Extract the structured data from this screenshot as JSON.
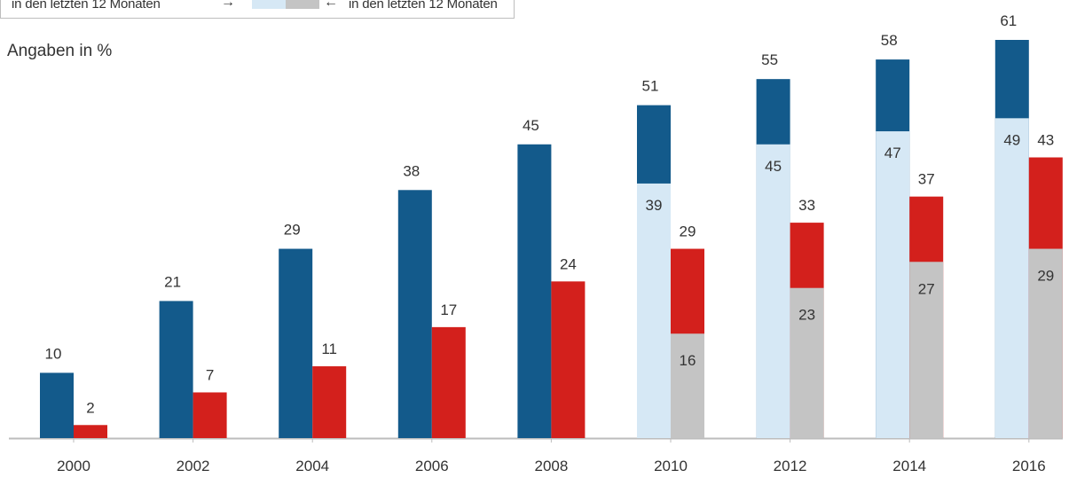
{
  "legend": {
    "left_text": "in den letzten 12 Monaten",
    "right_text": "in den letzten 12 Monaten",
    "left_arrow": "→",
    "right_arrow": "←",
    "swatch_colors": [
      "#d6e8f5",
      "#c4c4c4"
    ]
  },
  "unit_label": "Angaben in %",
  "colors": {
    "blue": "#135a8b",
    "light_blue": "#d6e8f5",
    "red": "#d3201c",
    "grey": "#c4c4c4",
    "axis": "#bdbdbd",
    "text": "#333333"
  },
  "chart_data": {
    "type": "bar",
    "categories": [
      "2000",
      "2002",
      "2004",
      "2006",
      "2008",
      "2010",
      "2012",
      "2014",
      "2016"
    ],
    "ylim": [
      0,
      70
    ],
    "grid": false,
    "series": [
      {
        "values": [
          10,
          21,
          29,
          38,
          45,
          51,
          55,
          58,
          61
        ],
        "color": "#135a8b"
      },
      {
        "values": [
          null,
          null,
          null,
          null,
          null,
          39,
          45,
          47,
          49
        ],
        "color": "#d6e8f5"
      },
      {
        "values": [
          2,
          7,
          11,
          17,
          24,
          29,
          33,
          37,
          43
        ],
        "color": "#d3201c"
      },
      {
        "values": [
          null,
          null,
          null,
          null,
          null,
          16,
          23,
          27,
          29
        ],
        "color": "#c4c4c4"
      }
    ]
  }
}
